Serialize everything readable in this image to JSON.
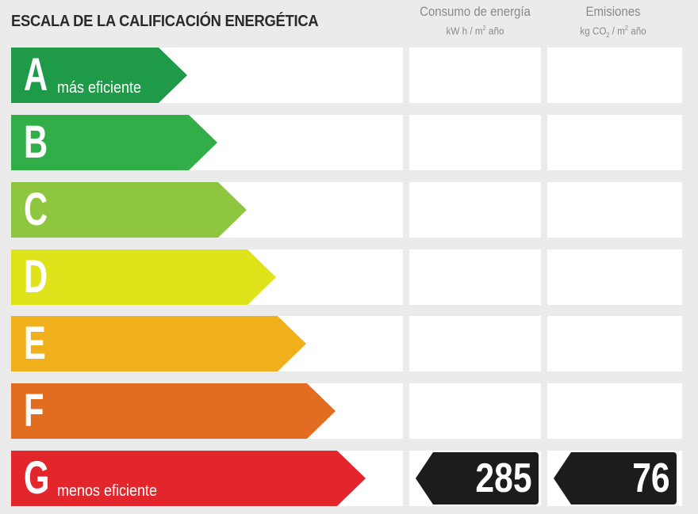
{
  "title": "ESCALA DE LA CALIFICACIÓN ENERGÉTICA",
  "columns": {
    "energy": {
      "label": "Consumo de energía",
      "unit_prefix": "kW h / m",
      "unit_sup": "2",
      "unit_suffix": " año"
    },
    "emissions": {
      "label": "Emisiones",
      "unit_prefix": "kg CO",
      "unit_sub": "2",
      "unit_mid": " / m",
      "unit_sup": "2",
      "unit_suffix": " año"
    }
  },
  "ratings": [
    {
      "letter": "A",
      "sublabel": "más eficiente",
      "color": "#1f9a48"
    },
    {
      "letter": "B",
      "sublabel": "",
      "color": "#31ae47"
    },
    {
      "letter": "C",
      "sublabel": "",
      "color": "#8ec63f"
    },
    {
      "letter": "D",
      "sublabel": "",
      "color": "#dfe41a"
    },
    {
      "letter": "E",
      "sublabel": "",
      "color": "#f0b01c"
    },
    {
      "letter": "F",
      "sublabel": "",
      "color": "#e26d21"
    },
    {
      "letter": "G",
      "sublabel": "menos eficiente",
      "color": "#e3262b"
    }
  ],
  "result": {
    "rating": "G",
    "energy_value": "285",
    "emissions_value": "76"
  }
}
